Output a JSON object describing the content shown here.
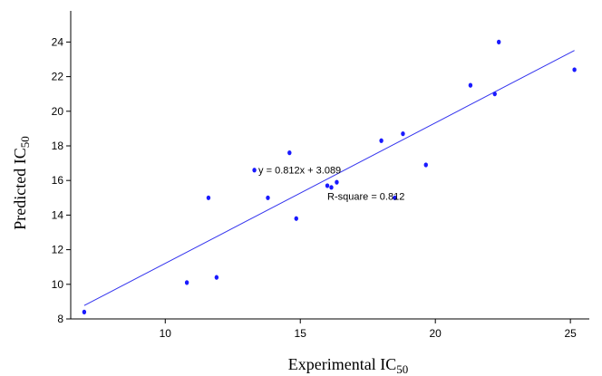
{
  "chart_data": {
    "type": "scatter",
    "title": "",
    "xlabel": "Experimental IC",
    "xlabel_sub": "50",
    "ylabel": "Predicted IC",
    "ylabel_sub": "50",
    "xlim": [
      6.5,
      25.7
    ],
    "ylim": [
      8,
      25.8
    ],
    "x_ticks": [
      10,
      15,
      20,
      25
    ],
    "y_ticks": [
      8,
      10,
      12,
      14,
      16,
      18,
      20,
      22,
      24
    ],
    "grid": false,
    "point_color": "#1a1aff",
    "line_color": "#3333ee",
    "points": [
      {
        "x": 7.0,
        "y": 8.4
      },
      {
        "x": 10.8,
        "y": 10.1
      },
      {
        "x": 11.6,
        "y": 15.0
      },
      {
        "x": 11.9,
        "y": 10.4
      },
      {
        "x": 13.3,
        "y": 16.6
      },
      {
        "x": 13.8,
        "y": 15.0
      },
      {
        "x": 14.6,
        "y": 17.6
      },
      {
        "x": 14.85,
        "y": 13.8
      },
      {
        "x": 16.0,
        "y": 15.7
      },
      {
        "x": 16.15,
        "y": 15.6
      },
      {
        "x": 16.35,
        "y": 15.9
      },
      {
        "x": 18.0,
        "y": 18.3
      },
      {
        "x": 18.5,
        "y": 15.0
      },
      {
        "x": 18.8,
        "y": 18.7
      },
      {
        "x": 19.65,
        "y": 16.9
      },
      {
        "x": 21.3,
        "y": 21.5
      },
      {
        "x": 22.2,
        "y": 21.0
      },
      {
        "x": 22.35,
        "y": 24.0
      },
      {
        "x": 25.15,
        "y": 22.4
      }
    ],
    "fit_line": {
      "slope": 0.812,
      "intercept": 3.089,
      "x_range": [
        7.0,
        25.15
      ]
    },
    "annotations": {
      "equation": "y = 0.812x + 3.089",
      "r_square": "R-square = 0.812"
    }
  }
}
